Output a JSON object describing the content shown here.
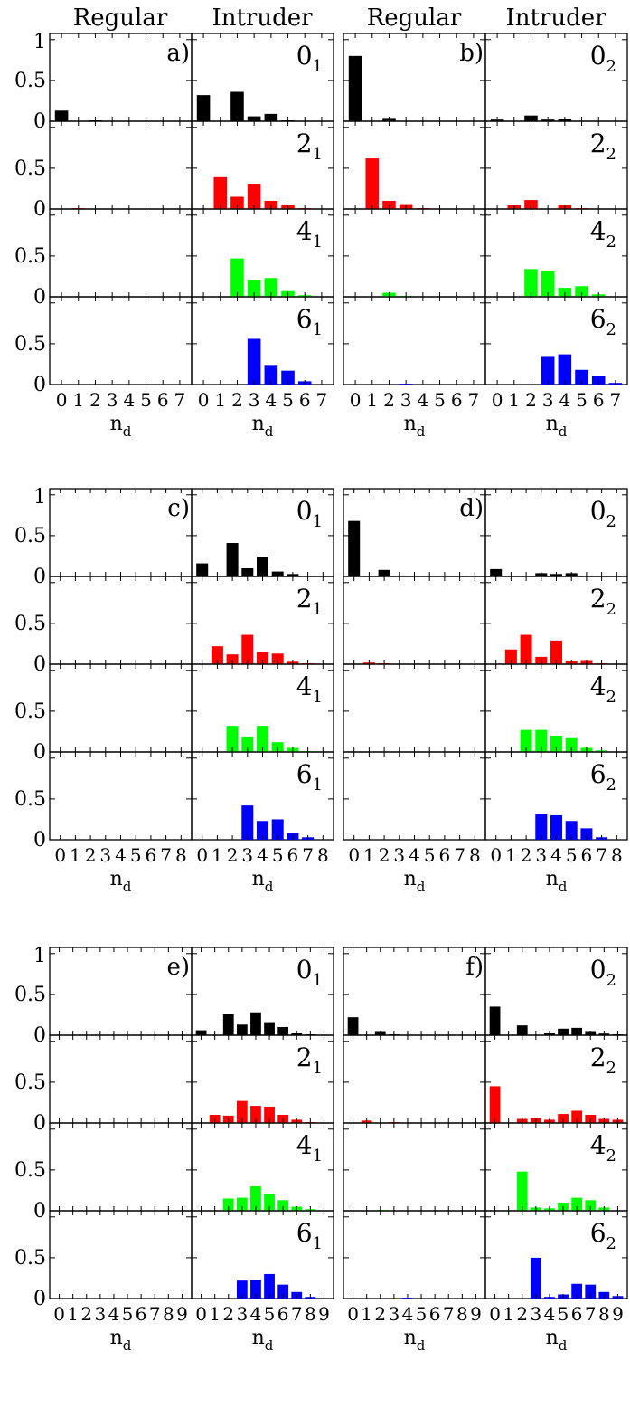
{
  "headers": {
    "regular": "Regular",
    "intruder": "Intruder"
  },
  "colors": {
    "0": "#000000",
    "2": "#ff0000",
    "4": "#00ff00",
    "6": "#0000ff"
  },
  "y_ticks": [
    "1",
    "0.5",
    "0"
  ],
  "x_axis_label": {
    "main": "n",
    "sub": "d"
  },
  "chart_data": [
    {
      "type": "bar",
      "tag": "a)",
      "xmax": 7,
      "ylim": [
        0,
        1
      ],
      "rows": [
        {
          "state": "0",
          "sub": "1",
          "regular": [
            0.13,
            0,
            0.01,
            0,
            0,
            0,
            0,
            0
          ],
          "intruder": [
            0.32,
            0,
            0.36,
            0.06,
            0.09,
            0.01,
            0,
            0
          ]
        },
        {
          "state": "2",
          "sub": "1",
          "regular": [
            0,
            0.01,
            0,
            0,
            0,
            0,
            0,
            0
          ],
          "intruder": [
            0,
            0.39,
            0.15,
            0.31,
            0.1,
            0.05,
            0.01,
            0
          ]
        },
        {
          "state": "4",
          "sub": "1",
          "regular": [
            0,
            0,
            0,
            0,
            0,
            0,
            0,
            0
          ],
          "intruder": [
            0,
            0,
            0.47,
            0.21,
            0.23,
            0.07,
            0.02,
            0
          ]
        },
        {
          "state": "6",
          "sub": "1",
          "regular": [
            0,
            0,
            0,
            0,
            0,
            0,
            0,
            0
          ],
          "intruder": [
            0,
            0,
            0,
            0.56,
            0.24,
            0.17,
            0.04,
            0
          ]
        }
      ]
    },
    {
      "type": "bar",
      "tag": "b)",
      "xmax": 7,
      "ylim": [
        0,
        1
      ],
      "rows": [
        {
          "state": "0",
          "sub": "2",
          "regular": [
            0.8,
            0,
            0.04,
            0,
            0,
            0,
            0,
            0
          ],
          "intruder": [
            0.02,
            0,
            0.07,
            0.02,
            0.03,
            0,
            0,
            0
          ]
        },
        {
          "state": "2",
          "sub": "2",
          "regular": [
            0,
            0.62,
            0.1,
            0.06,
            0.01,
            0,
            0,
            0
          ],
          "intruder": [
            0,
            0.05,
            0.11,
            0,
            0.05,
            0.01,
            0,
            0
          ]
        },
        {
          "state": "4",
          "sub": "2",
          "regular": [
            0,
            0,
            0.05,
            0.01,
            0,
            0,
            0,
            0
          ],
          "intruder": [
            0,
            0,
            0.34,
            0.32,
            0.11,
            0.13,
            0.03,
            0
          ]
        },
        {
          "state": "6",
          "sub": "2",
          "regular": [
            0,
            0,
            0,
            0.01,
            0,
            0,
            0,
            0
          ],
          "intruder": [
            0,
            0,
            0,
            0.35,
            0.37,
            0.18,
            0.1,
            0.02
          ]
        }
      ]
    },
    {
      "type": "bar",
      "tag": "c)",
      "xmax": 8,
      "ylim": [
        0,
        1
      ],
      "rows": [
        {
          "state": "0",
          "sub": "1",
          "regular": [
            0,
            0,
            0,
            0,
            0,
            0,
            0,
            0,
            0
          ],
          "intruder": [
            0.16,
            0,
            0.41,
            0.1,
            0.24,
            0.06,
            0.03,
            0,
            0
          ]
        },
        {
          "state": "2",
          "sub": "1",
          "regular": [
            0,
            0,
            0,
            0,
            0,
            0,
            0,
            0,
            0
          ],
          "intruder": [
            0,
            0.22,
            0.12,
            0.36,
            0.15,
            0.13,
            0.03,
            0.01,
            0
          ]
        },
        {
          "state": "4",
          "sub": "1",
          "regular": [
            0,
            0,
            0,
            0,
            0,
            0,
            0,
            0,
            0
          ],
          "intruder": [
            0,
            0,
            0.32,
            0.19,
            0.32,
            0.12,
            0.05,
            0.01,
            0
          ]
        },
        {
          "state": "6",
          "sub": "1",
          "regular": [
            0,
            0,
            0,
            0,
            0,
            0,
            0,
            0,
            0
          ],
          "intruder": [
            0,
            0,
            0,
            0.42,
            0.23,
            0.25,
            0.08,
            0.03,
            0
          ]
        }
      ]
    },
    {
      "type": "bar",
      "tag": "d)",
      "xmax": 8,
      "ylim": [
        0,
        1
      ],
      "rows": [
        {
          "state": "0",
          "sub": "2",
          "regular": [
            0.68,
            0,
            0.08,
            0.01,
            0,
            0,
            0,
            0,
            0
          ],
          "intruder": [
            0.09,
            0,
            0,
            0.04,
            0.03,
            0.04,
            0.01,
            0,
            0
          ]
        },
        {
          "state": "2",
          "sub": "2",
          "regular": [
            0,
            0.02,
            0.01,
            0,
            0,
            0,
            0,
            0,
            0
          ],
          "intruder": [
            0,
            0.18,
            0.36,
            0.09,
            0.29,
            0.04,
            0.05,
            0.01,
            0
          ]
        },
        {
          "state": "4",
          "sub": "2",
          "regular": [
            0,
            0,
            0,
            0,
            0,
            0,
            0,
            0,
            0
          ],
          "intruder": [
            0,
            0,
            0.27,
            0.27,
            0.2,
            0.18,
            0.05,
            0.02,
            0
          ]
        },
        {
          "state": "6",
          "sub": "2",
          "regular": [
            0,
            0,
            0,
            0,
            0,
            0,
            0,
            0,
            0
          ],
          "intruder": [
            0,
            0,
            0,
            0.31,
            0.3,
            0.23,
            0.14,
            0.03,
            0
          ]
        }
      ]
    },
    {
      "type": "bar",
      "tag": "e)",
      "xmax": 9,
      "ylim": [
        0,
        1
      ],
      "rows": [
        {
          "state": "0",
          "sub": "1",
          "regular": [
            0,
            0,
            0,
            0,
            0,
            0,
            0,
            0,
            0,
            0
          ],
          "intruder": [
            0.06,
            0,
            0.26,
            0.13,
            0.28,
            0.16,
            0.1,
            0.03,
            0.01,
            0
          ]
        },
        {
          "state": "2",
          "sub": "1",
          "regular": [
            0,
            0,
            0,
            0,
            0,
            0,
            0,
            0,
            0,
            0
          ],
          "intruder": [
            0,
            0.1,
            0.09,
            0.27,
            0.21,
            0.2,
            0.1,
            0.04,
            0.01,
            0
          ]
        },
        {
          "state": "4",
          "sub": "1",
          "regular": [
            0,
            0,
            0,
            0,
            0,
            0,
            0,
            0,
            0,
            0
          ],
          "intruder": [
            0,
            0,
            0.15,
            0.16,
            0.3,
            0.21,
            0.13,
            0.05,
            0.02,
            0
          ]
        },
        {
          "state": "6",
          "sub": "1",
          "regular": [
            0,
            0,
            0,
            0,
            0,
            0,
            0,
            0,
            0,
            0
          ],
          "intruder": [
            0,
            0,
            0,
            0.22,
            0.23,
            0.3,
            0.17,
            0.08,
            0.02,
            0
          ]
        }
      ]
    },
    {
      "type": "bar",
      "tag": "f)",
      "xmax": 9,
      "ylim": [
        0,
        1
      ],
      "rows": [
        {
          "state": "0",
          "sub": "2",
          "regular": [
            0.22,
            0,
            0.05,
            0.01,
            0,
            0,
            0,
            0,
            0,
            0
          ],
          "intruder": [
            0.35,
            0,
            0.12,
            0,
            0.03,
            0.08,
            0.09,
            0.05,
            0.02,
            0.01
          ]
        },
        {
          "state": "2",
          "sub": "2",
          "regular": [
            0,
            0.03,
            0,
            0.01,
            0,
            0,
            0,
            0,
            0,
            0
          ],
          "intruder": [
            0.45,
            0,
            0.05,
            0.06,
            0.04,
            0.11,
            0.15,
            0.1,
            0.05,
            0.04
          ]
        },
        {
          "state": "4",
          "sub": "2",
          "regular": [
            0,
            0,
            0.01,
            0,
            0,
            0,
            0,
            0,
            0,
            0
          ],
          "intruder": [
            0,
            0,
            0.48,
            0.04,
            0.03,
            0.1,
            0.16,
            0.13,
            0.04,
            0
          ]
        },
        {
          "state": "6",
          "sub": "2",
          "regular": [
            0,
            0,
            0,
            0,
            0.01,
            0,
            0,
            0,
            0,
            0
          ],
          "intruder": [
            0,
            0,
            0,
            0.5,
            0.02,
            0.05,
            0.18,
            0.17,
            0.08,
            0.03
          ]
        }
      ]
    }
  ]
}
